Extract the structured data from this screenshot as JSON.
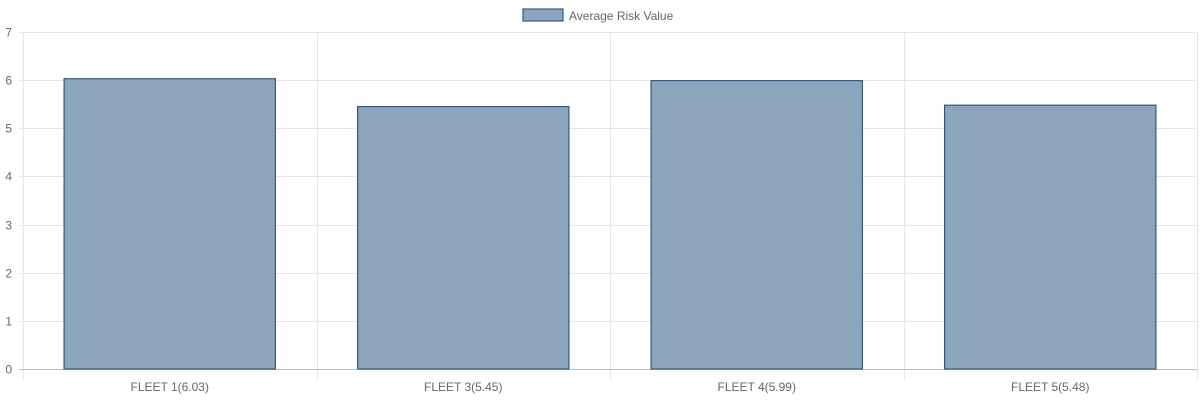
{
  "legend": {
    "label": "Average Risk Value"
  },
  "colors": {
    "bar_fill": "#8ca5bd",
    "bar_border": "#34597d",
    "grid": "#e6e6e6",
    "axis": "#bdbdbd",
    "text": "#666666"
  },
  "chart_data": {
    "type": "bar",
    "title": "",
    "xlabel": "",
    "ylabel": "",
    "categories": [
      "FLEET 1(6.03)",
      "FLEET 3(5.45)",
      "FLEET 4(5.99)",
      "FLEET 5(5.48)"
    ],
    "series": [
      {
        "name": "Average Risk Value",
        "values": [
          6.03,
          5.45,
          5.99,
          5.48
        ]
      }
    ],
    "ylim": [
      0,
      7
    ],
    "yticks": [
      0,
      1,
      2,
      3,
      4,
      5,
      6,
      7
    ],
    "grid": true,
    "legend_position": "top-center"
  }
}
